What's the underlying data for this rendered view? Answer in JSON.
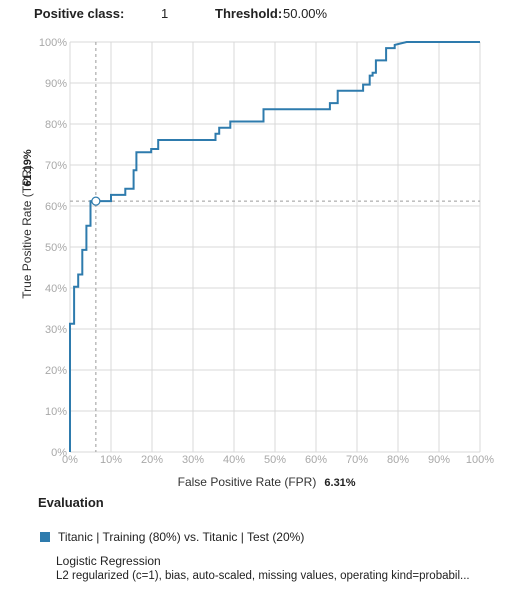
{
  "header": {
    "positive_class_label": "Positive class:",
    "positive_class_value": "1",
    "threshold_label": "Threshold:",
    "threshold_value": "50.00%"
  },
  "colors": {
    "series": "#2e7bad",
    "grid": "#d9d9d9",
    "crosshair": "#9a9a9a"
  },
  "chart_data": {
    "type": "line",
    "xlabel": "False Positive Rate (FPR)",
    "ylabel": "True Positive Rate (TPR)",
    "x_value_label": "6.31%",
    "y_value_label": "61.19%",
    "xlim": [
      0,
      100
    ],
    "ylim": [
      0,
      100
    ],
    "x_ticks": [
      "0%",
      "10%",
      "20%",
      "30%",
      "40%",
      "50%",
      "60%",
      "70%",
      "80%",
      "90%",
      "100%"
    ],
    "y_ticks": [
      "0%",
      "10%",
      "20%",
      "30%",
      "40%",
      "50%",
      "60%",
      "70%",
      "80%",
      "90%",
      "100%"
    ],
    "grid": true,
    "operating_point": {
      "x": 6.31,
      "y": 61.19
    },
    "series": [
      {
        "name": "Titanic | Training (80%) vs. Titanic | Test (20%)",
        "x": [
          0,
          0,
          1,
          1,
          2,
          2,
          3,
          3,
          4,
          4,
          5,
          5,
          10,
          10,
          13.5,
          13.5,
          15.5,
          15.5,
          16.2,
          16.2,
          19.8,
          19.8,
          21.5,
          21.5,
          35.5,
          35.5,
          36.4,
          36.4,
          39.1,
          39.1,
          47.2,
          47.2,
          63.4,
          63.4,
          65.3,
          65.3,
          71.5,
          71.5,
          73.1,
          73.1,
          73.8,
          73.8,
          74.6,
          74.6,
          77.1,
          77.1,
          79.2,
          79.2,
          82.1,
          100
        ],
        "y": [
          0,
          31.3,
          31.3,
          40.3,
          40.3,
          43.3,
          43.3,
          49.3,
          49.3,
          55.2,
          55.2,
          61.2,
          61.2,
          62.7,
          62.7,
          64.2,
          64.2,
          68.7,
          68.7,
          73.1,
          73.1,
          73.9,
          73.9,
          76.1,
          76.1,
          77.6,
          77.6,
          79.1,
          79.1,
          80.6,
          80.6,
          83.6,
          83.6,
          85.1,
          85.1,
          88.1,
          88.1,
          89.6,
          89.6,
          91.8,
          91.8,
          92.5,
          92.5,
          95.5,
          95.5,
          98.5,
          98.5,
          99.3,
          100,
          100
        ]
      }
    ]
  },
  "evaluation": {
    "title": "Evaluation",
    "legend_label": "Titanic | Training (80%) vs. Titanic | Test (20%)",
    "model_name": "Logistic Regression",
    "model_description": "L2 regularized (c=1), bias, auto-scaled, missing values, operating kind=probabil..."
  }
}
